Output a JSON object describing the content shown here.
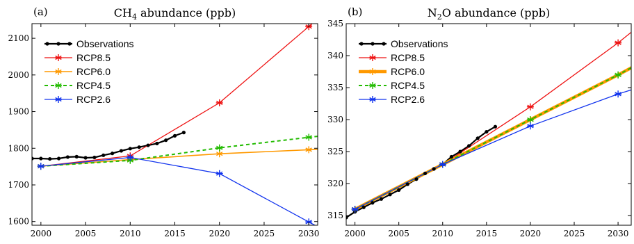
{
  "chart_data": [
    {
      "type": "line",
      "panel_label": "(a)",
      "title_main": "CH",
      "title_sub": "4",
      "title_rest": " abundance (ppb)",
      "xlim": [
        1999,
        2031
      ],
      "ylim": [
        1590,
        2140
      ],
      "x_ticks": [
        2000,
        2005,
        2010,
        2015,
        2020,
        2025,
        2030
      ],
      "y_ticks": [
        1600,
        1700,
        1800,
        1900,
        2000,
        2100
      ],
      "legend_position": "top-left",
      "series": [
        {
          "name": "Observations",
          "color": "#000000",
          "marker": "dot",
          "style": "solid",
          "width": 2.2,
          "x": [
            1998,
            1999,
            2000,
            2001,
            2002,
            2003,
            2004,
            2005,
            2006,
            2007,
            2008,
            2009,
            2010,
            2011,
            2012,
            2013,
            2014,
            2015,
            2016
          ],
          "y": [
            1771,
            1772,
            1772,
            1771,
            1772,
            1776,
            1777,
            1774,
            1775,
            1781,
            1786,
            1793,
            1799,
            1803,
            1808,
            1813,
            1822,
            1834,
            1843
          ]
        },
        {
          "name": "RCP8.5",
          "color": "#ee1111",
          "marker": "star",
          "style": "solid",
          "width": 1.3,
          "x": [
            2000,
            2010,
            2020,
            2030,
            2033
          ],
          "y": [
            1751,
            1779,
            1924,
            2132,
            2200
          ],
          "marker_x": [
            2000,
            2010,
            2020,
            2030
          ]
        },
        {
          "name": "RCP6.0",
          "color": "#ff9900",
          "marker": "star",
          "style": "solid",
          "width": 1.6,
          "x": [
            2000,
            2010,
            2020,
            2030,
            2033
          ],
          "y": [
            1751,
            1769,
            1785,
            1796,
            1800
          ],
          "marker_x": [
            2000,
            2010,
            2020,
            2030
          ]
        },
        {
          "name": "RCP4.5",
          "color": "#22bb00",
          "marker": "star",
          "style": "dashed",
          "width": 2.0,
          "x": [
            2000,
            2010,
            2020,
            2030,
            2033
          ],
          "y": [
            1751,
            1767,
            1801,
            1830,
            1838
          ],
          "marker_x": [
            2000,
            2010,
            2020,
            2030
          ]
        },
        {
          "name": "RCP2.6",
          "color": "#1133ee",
          "marker": "star",
          "style": "solid",
          "width": 1.3,
          "x": [
            2000,
            2010,
            2020,
            2030,
            2033
          ],
          "y": [
            1751,
            1775,
            1731,
            1599,
            1560
          ],
          "marker_x": [
            2000,
            2010,
            2020,
            2030
          ]
        }
      ]
    },
    {
      "type": "line",
      "panel_label": "(b)",
      "title_main": "N",
      "title_sub": "2",
      "title_rest": "O abundance (ppb)",
      "xlim": [
        1999,
        2031.5
      ],
      "ylim": [
        313.5,
        345
      ],
      "x_ticks": [
        2000,
        2005,
        2010,
        2015,
        2020,
        2025,
        2030
      ],
      "y_ticks": [
        315,
        320,
        325,
        330,
        335,
        340,
        345
      ],
      "legend_position": "top-left",
      "series": [
        {
          "name": "Observations",
          "color": "#000000",
          "marker": "dot",
          "style": "solid",
          "width": 2.2,
          "x": [
            1999,
            2000,
            2001,
            2002,
            2003,
            2004,
            2005,
            2006,
            2007,
            2008,
            2009,
            2010,
            2011,
            2012,
            2013,
            2014,
            2015,
            2016
          ],
          "y": [
            314.7,
            315.6,
            316.3,
            317.0,
            317.6,
            318.3,
            319.0,
            319.9,
            320.7,
            321.6,
            322.3,
            323.0,
            324.2,
            325.0,
            325.9,
            327.1,
            328.1,
            328.9
          ]
        },
        {
          "name": "RCP8.5",
          "color": "#ee1111",
          "marker": "star",
          "style": "solid",
          "width": 1.3,
          "x": [
            2000,
            2010,
            2020,
            2030,
            2033
          ],
          "y": [
            316.0,
            323.0,
            332.0,
            342.0,
            345.3
          ],
          "marker_x": [
            2000,
            2010,
            2020,
            2030
          ]
        },
        {
          "name": "RCP6.0",
          "color": "#ff9900",
          "marker": "star",
          "style": "solid",
          "width": 4.5,
          "x": [
            2000,
            2010,
            2020,
            2030,
            2033
          ],
          "y": [
            316.0,
            323.0,
            330.0,
            337.0,
            339.2
          ],
          "marker_x": [
            2000,
            2010,
            2020,
            2030
          ]
        },
        {
          "name": "RCP4.5",
          "color": "#22bb00",
          "marker": "star",
          "style": "dashed",
          "width": 2.0,
          "x": [
            2000,
            2010,
            2020,
            2030,
            2033
          ],
          "y": [
            316.0,
            323.0,
            330.0,
            337.0,
            339.2
          ],
          "marker_x": [
            2000,
            2010,
            2020,
            2030
          ]
        },
        {
          "name": "RCP2.6",
          "color": "#1133ee",
          "marker": "star",
          "style": "solid",
          "width": 1.3,
          "x": [
            2000,
            2010,
            2020,
            2030,
            2033
          ],
          "y": [
            316.0,
            323.0,
            329.0,
            334.0,
            335.3
          ],
          "marker_x": [
            2000,
            2010,
            2020,
            2030
          ]
        }
      ]
    }
  ]
}
